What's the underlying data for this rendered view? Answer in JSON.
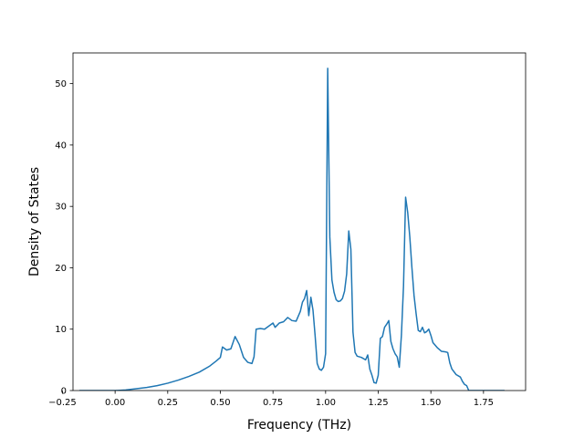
{
  "chart_data": {
    "type": "line",
    "title": "",
    "xlabel": "Frequency (THz)",
    "ylabel": "Density of States",
    "xlim": [
      -0.2,
      1.95
    ],
    "ylim": [
      0,
      55
    ],
    "grid": false,
    "legend": "none",
    "x_ticks": [
      -0.25,
      0.0,
      0.25,
      0.5,
      0.75,
      1.0,
      1.25,
      1.5,
      1.75
    ],
    "x_tick_labels": [
      "−0.25",
      "0.00",
      "0.25",
      "0.50",
      "0.75",
      "1.00",
      "1.25",
      "1.50",
      "1.75"
    ],
    "y_ticks": [
      0,
      10,
      20,
      30,
      40,
      50
    ],
    "y_tick_labels": [
      "0",
      "10",
      "20",
      "30",
      "40",
      "50"
    ],
    "line_color": "#1f77b4",
    "series": [
      {
        "x": [
          -0.17,
          0.0,
          0.05,
          0.1,
          0.15,
          0.2,
          0.25,
          0.3,
          0.35,
          0.4,
          0.45,
          0.48,
          0.5,
          0.51,
          0.53,
          0.55,
          0.57,
          0.59,
          0.61,
          0.63,
          0.65,
          0.66,
          0.67,
          0.69,
          0.71,
          0.73,
          0.75,
          0.76,
          0.78,
          0.8,
          0.82,
          0.84,
          0.86,
          0.88,
          0.89,
          0.9,
          0.91,
          0.92,
          0.93,
          0.94,
          0.95,
          0.96,
          0.97,
          0.98,
          0.99,
          1.0,
          1.01,
          1.02,
          1.03,
          1.04,
          1.05,
          1.06,
          1.07,
          1.08,
          1.09,
          1.1,
          1.11,
          1.12,
          1.13,
          1.14,
          1.15,
          1.17,
          1.19,
          1.2,
          1.21,
          1.22,
          1.23,
          1.24,
          1.25,
          1.26,
          1.27,
          1.28,
          1.29,
          1.3,
          1.31,
          1.32,
          1.33,
          1.34,
          1.35,
          1.36,
          1.37,
          1.38,
          1.39,
          1.4,
          1.41,
          1.42,
          1.43,
          1.44,
          1.45,
          1.46,
          1.47,
          1.48,
          1.49,
          1.5,
          1.51,
          1.53,
          1.55,
          1.57,
          1.58,
          1.59,
          1.6,
          1.62,
          1.64,
          1.65,
          1.66,
          1.67,
          1.68,
          1.85
        ],
        "y": [
          0,
          0,
          0.1,
          0.3,
          0.5,
          0.8,
          1.2,
          1.7,
          2.3,
          3.0,
          4.0,
          4.8,
          5.4,
          7.1,
          6.6,
          6.8,
          8.8,
          7.5,
          5.4,
          4.6,
          4.4,
          5.5,
          10.0,
          10.1,
          10.0,
          10.5,
          11.0,
          10.3,
          11.0,
          11.2,
          11.9,
          11.4,
          11.3,
          12.9,
          14.4,
          15.0,
          16.3,
          12.2,
          15.2,
          13.1,
          9.0,
          4.4,
          3.5,
          3.3,
          3.8,
          6.0,
          52.5,
          25.0,
          18.0,
          16.0,
          14.8,
          14.5,
          14.6,
          15.0,
          16.2,
          19.0,
          26.0,
          23.0,
          9.5,
          6.2,
          5.6,
          5.4,
          5.0,
          5.8,
          3.5,
          2.5,
          1.3,
          1.2,
          2.5,
          8.5,
          8.8,
          10.3,
          10.8,
          11.4,
          8.0,
          6.8,
          6.0,
          5.5,
          3.8,
          9.0,
          17.0,
          31.5,
          29.0,
          25.0,
          20.0,
          15.5,
          12.5,
          9.8,
          9.6,
          10.3,
          9.4,
          9.6,
          10.0,
          9.0,
          7.8,
          7.0,
          6.4,
          6.3,
          6.2,
          4.5,
          3.5,
          2.6,
          2.2,
          1.5,
          1.0,
          0.8,
          0,
          0
        ]
      }
    ]
  }
}
